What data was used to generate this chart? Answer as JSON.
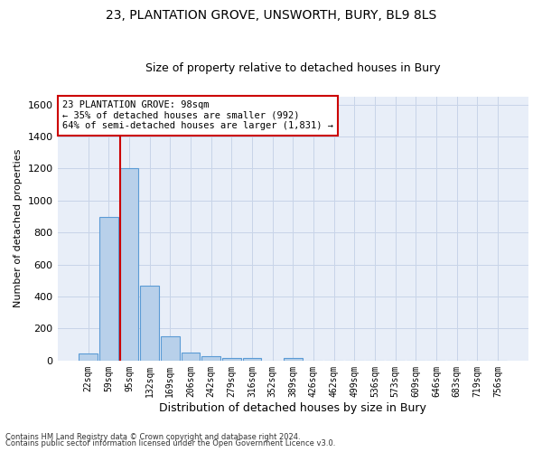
{
  "title_line1": "23, PLANTATION GROVE, UNSWORTH, BURY, BL9 8LS",
  "title_line2": "Size of property relative to detached houses in Bury",
  "xlabel": "Distribution of detached houses by size in Bury",
  "ylabel": "Number of detached properties",
  "footnote1": "Contains HM Land Registry data © Crown copyright and database right 2024.",
  "footnote2": "Contains public sector information licensed under the Open Government Licence v3.0.",
  "categories": [
    "22sqm",
    "59sqm",
    "95sqm",
    "132sqm",
    "169sqm",
    "206sqm",
    "242sqm",
    "279sqm",
    "316sqm",
    "352sqm",
    "389sqm",
    "426sqm",
    "462sqm",
    "499sqm",
    "536sqm",
    "573sqm",
    "609sqm",
    "646sqm",
    "683sqm",
    "719sqm",
    "756sqm"
  ],
  "bar_heights": [
    45,
    900,
    1200,
    470,
    150,
    50,
    30,
    15,
    18,
    0,
    18,
    0,
    0,
    0,
    0,
    0,
    0,
    0,
    0,
    0,
    0
  ],
  "bar_color": "#b8d0ea",
  "bar_edge_color": "#5b9bd5",
  "grid_color": "#c8d4e8",
  "background_color": "#e8eef8",
  "vline_x_index": 2,
  "vline_color": "#cc0000",
  "ylim": [
    0,
    1650
  ],
  "yticks": [
    0,
    200,
    400,
    600,
    800,
    1000,
    1200,
    1400,
    1600
  ],
  "annotation_text": "23 PLANTATION GROVE: 98sqm\n← 35% of detached houses are smaller (992)\n64% of semi-detached houses are larger (1,831) →",
  "annotation_box_color": "#cc0000",
  "title_fontsize": 10,
  "subtitle_fontsize": 9,
  "ylabel_fontsize": 8,
  "xlabel_fontsize": 9,
  "tick_fontsize": 7,
  "annot_fontsize": 7.5,
  "footnote_fontsize": 6
}
